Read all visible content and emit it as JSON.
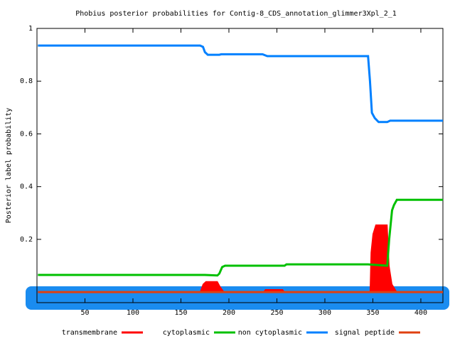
{
  "chart_data": {
    "type": "line",
    "title": "Phobius posterior probabilities for Contig-8_CDS_annotation_glimmer3Xpl_2_1",
    "y_label": "Posterior label probability",
    "xlim": [
      0,
      423
    ],
    "ylim": [
      -0.04,
      1
    ],
    "xticks": [
      50,
      100,
      150,
      200,
      250,
      300,
      350,
      400
    ],
    "yticks": [
      0.2,
      0.4,
      0.6,
      0.8,
      1
    ],
    "series": [
      {
        "name": "transmembrane",
        "color": "#ff0000",
        "fill": true,
        "x": [
          1,
          170,
          173,
          176,
          188,
          191,
          195,
          236,
          238,
          256,
          258,
          347,
          348,
          350,
          353,
          365,
          367,
          370,
          375,
          423
        ],
        "values": [
          0,
          0,
          0.03,
          0.04,
          0.04,
          0.02,
          0,
          0,
          0.01,
          0.01,
          0,
          0,
          0.15,
          0.22,
          0.255,
          0.255,
          0.1,
          0.03,
          0,
          0
        ]
      },
      {
        "name": "cytoplasmic",
        "color": "#00c000",
        "x": [
          1,
          175,
          188,
          190,
          193,
          196,
          258,
          260,
          345,
          365,
          367,
          370,
          372,
          375,
          423
        ],
        "values": [
          0.065,
          0.065,
          0.063,
          0.07,
          0.095,
          0.1,
          0.1,
          0.105,
          0.105,
          0.1,
          0.2,
          0.31,
          0.33,
          0.35,
          0.35
        ]
      },
      {
        "name": "non cytoplasmic",
        "color": "#0080ff",
        "x": [
          1,
          170,
          173,
          175,
          178,
          190,
          192,
          235,
          240,
          345,
          347,
          349,
          352,
          356,
          365,
          368,
          423
        ],
        "values": [
          0.935,
          0.935,
          0.93,
          0.91,
          0.9,
          0.9,
          0.902,
          0.902,
          0.895,
          0.895,
          0.8,
          0.68,
          0.66,
          0.645,
          0.645,
          0.65,
          0.65
        ]
      },
      {
        "name": "signal peptide",
        "color": "#e04010",
        "x": [
          1,
          423
        ],
        "values": [
          0,
          0
        ]
      }
    ]
  }
}
